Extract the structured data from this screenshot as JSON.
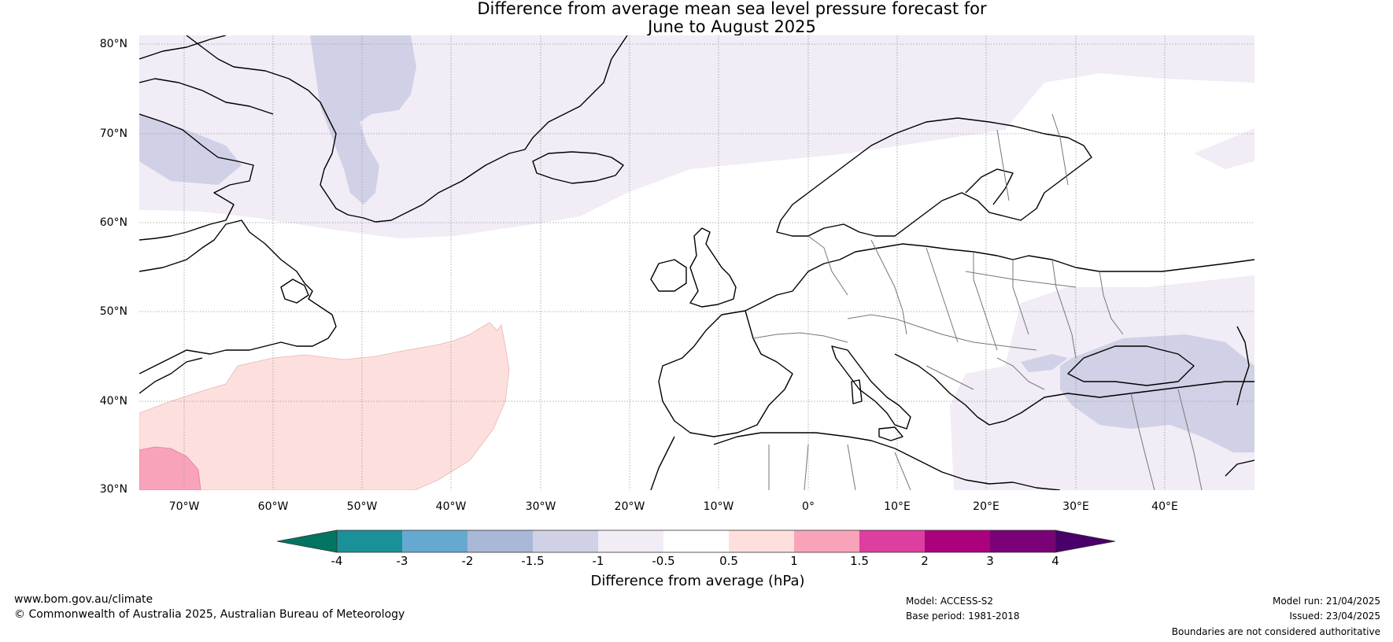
{
  "title": {
    "line1": "Difference from average mean sea level pressure forecast for",
    "line2": "June to August 2025"
  },
  "map": {
    "region": "North Atlantic and Europe",
    "lat_labels": [
      "80°N",
      "70°N",
      "60°N",
      "50°N",
      "40°N",
      "30°N"
    ],
    "lon_labels": [
      "70°W",
      "60°W",
      "50°W",
      "40°W",
      "30°W",
      "20°W",
      "10°W",
      "0°",
      "10°E",
      "20°E",
      "30°E",
      "40°E"
    ],
    "lat_values": [
      80,
      70,
      60,
      50,
      40,
      30
    ],
    "lon_values": [
      -70,
      -60,
      -50,
      -40,
      -30,
      -20,
      -10,
      0,
      10,
      20,
      30,
      40
    ],
    "extent": {
      "lon_min": -75,
      "lon_max": 50,
      "lat_min": 30,
      "lat_max": 81
    },
    "land_outline_color": "#000000",
    "border_color": "#777777",
    "grid": true
  },
  "colorbar": {
    "tick_labels": [
      "-4",
      "-3",
      "-2",
      "-1.5",
      "-1",
      "-0.5",
      "0.5",
      "1",
      "1.5",
      "2",
      "3",
      "4"
    ],
    "colors": [
      "#1a9098",
      "#66a9d0",
      "#a8b8d6",
      "#d0d1e6",
      "#f1ecf5",
      "#ffffff",
      "#fde0dd",
      "#f9a3ba",
      "#dd3e9f",
      "#ac017d",
      "#7a0177"
    ],
    "under_color": "#027562",
    "over_color": "#49006a",
    "label": "Difference from average (hPa)"
  },
  "footer": {
    "website": "www.bom.gov.au/climate",
    "copyright": "© Commonwealth of Australia 2025, Australian Bureau of Meteorology",
    "model": "Model: ACCESS-S2",
    "base_period": "Base period: 1981-2018",
    "model_run": "Model run: 21/04/2025",
    "issued": "Issued: 23/04/2025",
    "disclaimer": "Boundaries are not considered authoritative"
  }
}
